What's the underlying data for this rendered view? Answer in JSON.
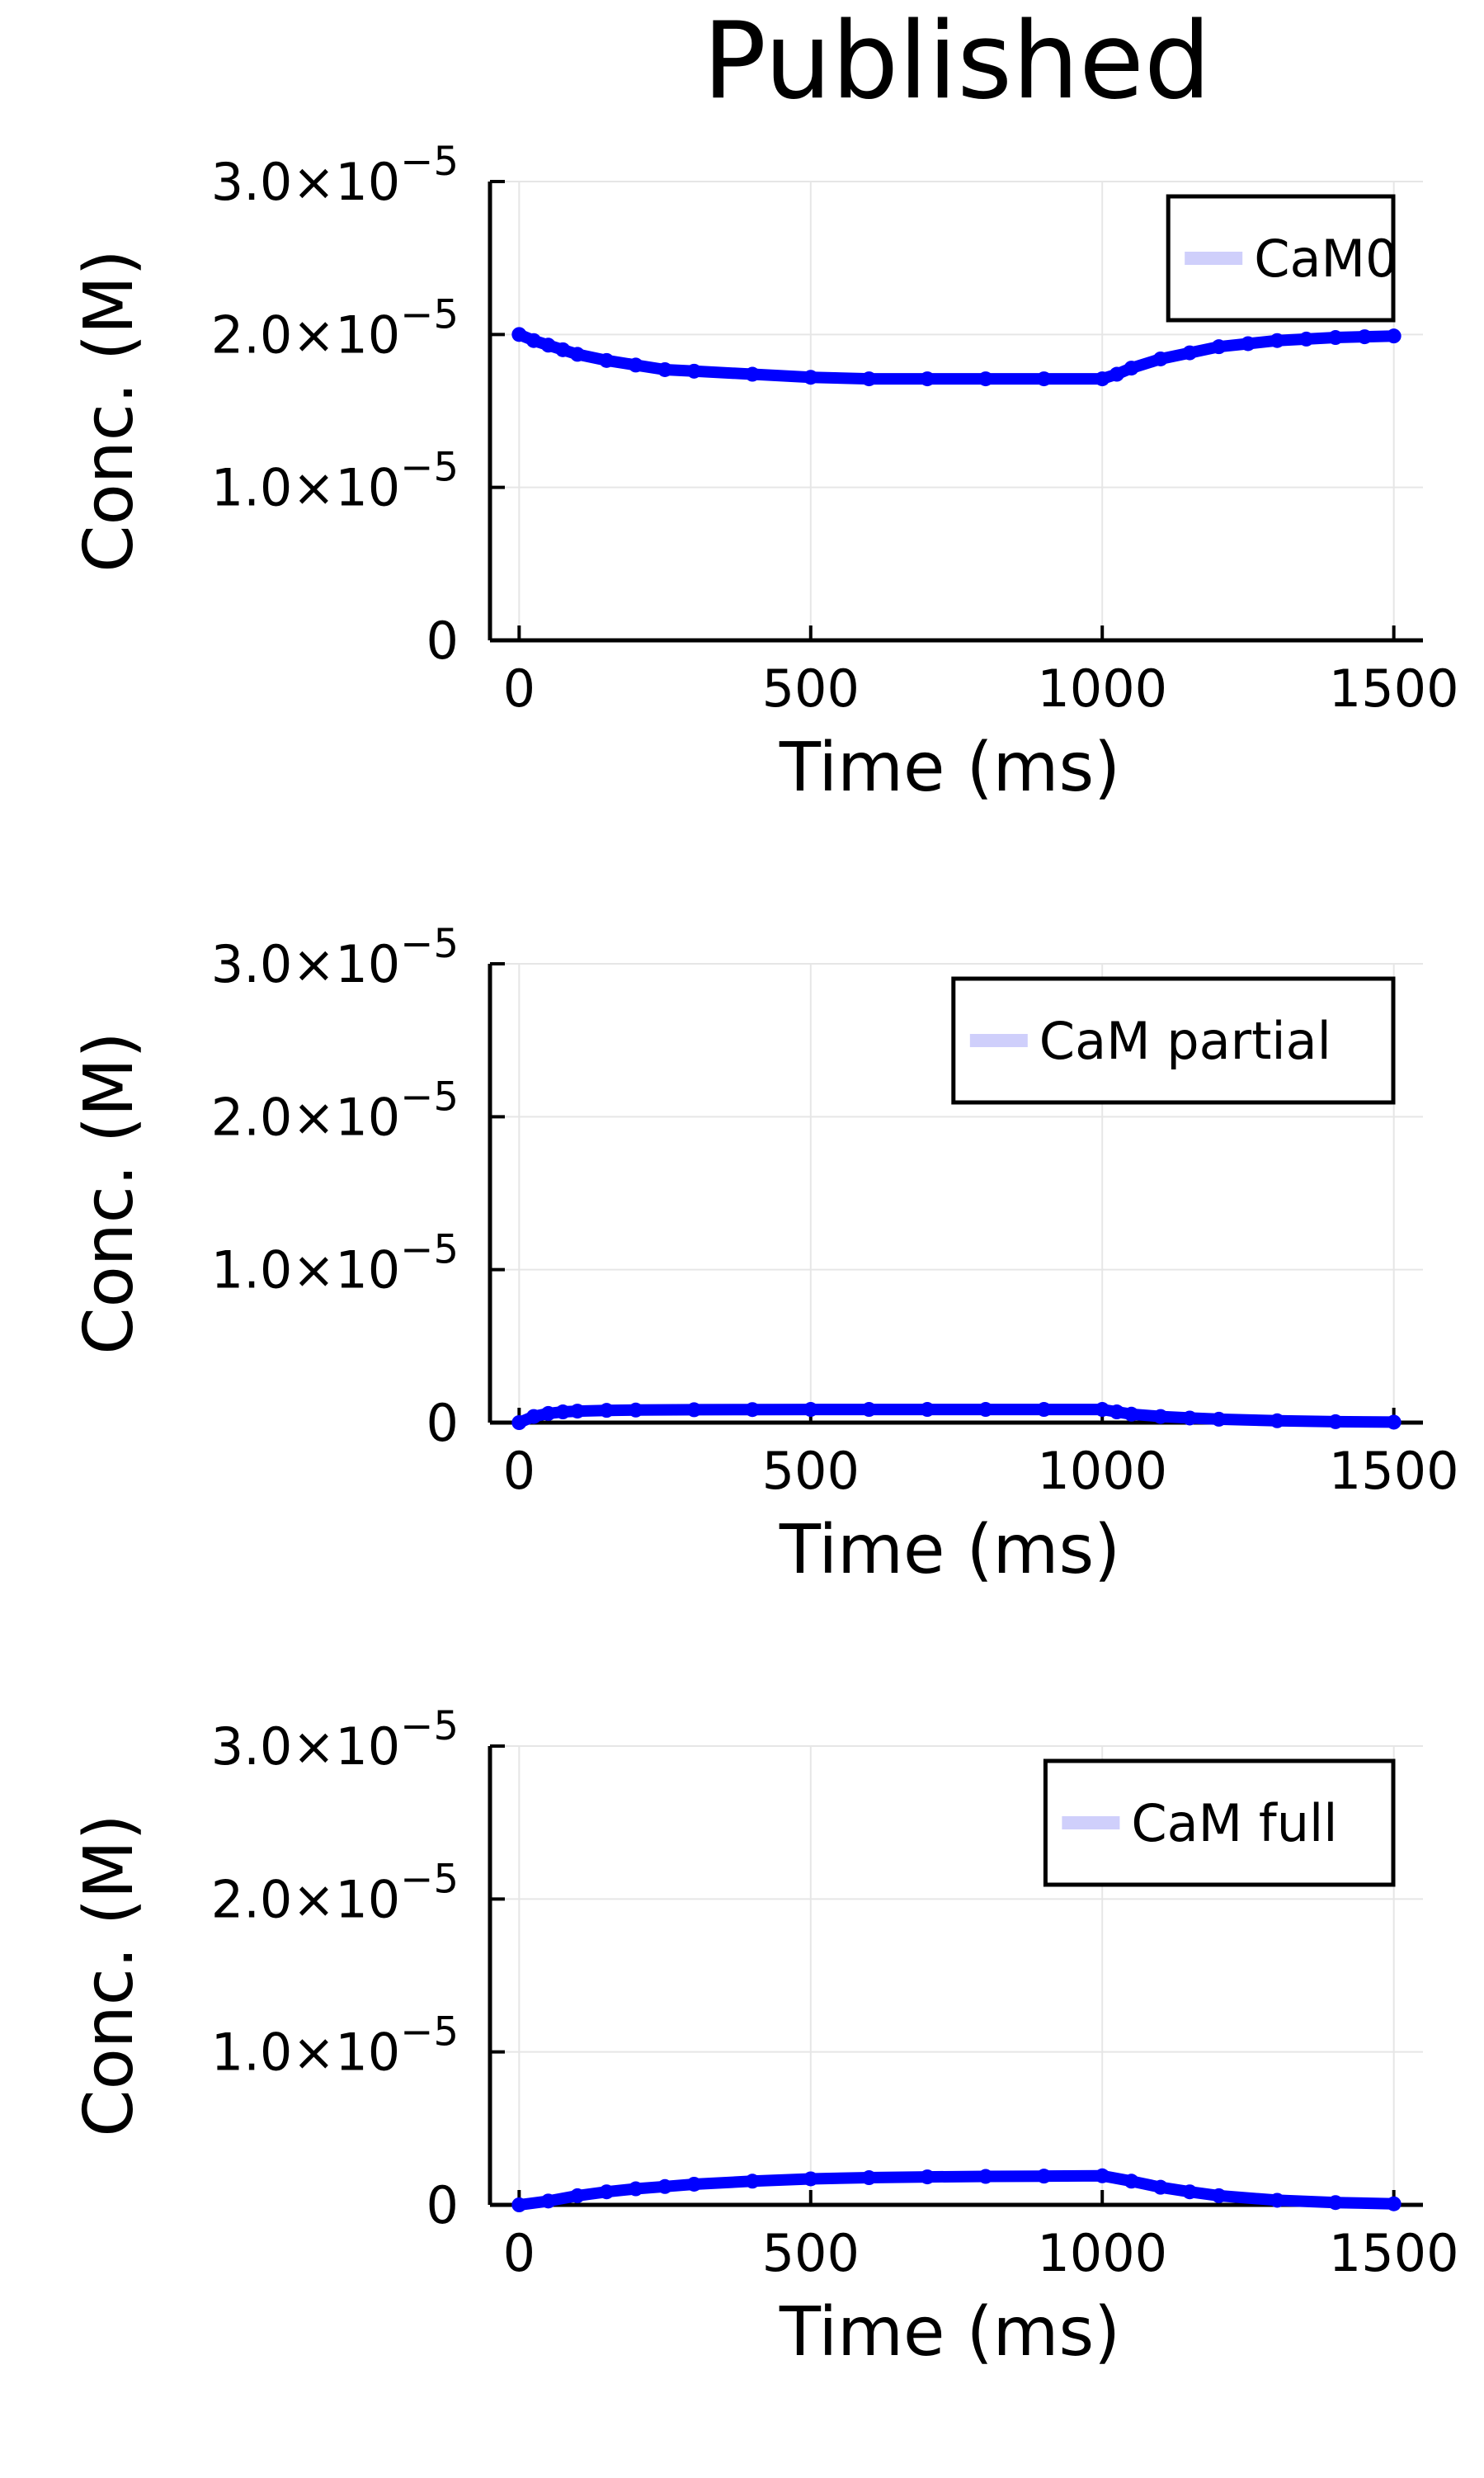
{
  "title": "Published",
  "colors": {
    "series": "#0000ff",
    "legend_swatch": "#cfcffb",
    "grid": "#e6e6e6",
    "axis": "#000000",
    "background": "#ffffff"
  },
  "chart_data": [
    {
      "type": "line",
      "xlabel": "Time (ms)",
      "ylabel": "Conc. (M)",
      "xlim": [
        -50,
        1550
      ],
      "ylim": [
        0,
        3e-05
      ],
      "xticks": [
        0,
        500,
        1000,
        1500
      ],
      "xtick_labels": [
        "0",
        "500",
        "1000",
        "1500"
      ],
      "yticks": [
        0,
        1e-05,
        2e-05,
        3e-05
      ],
      "ytick_labels": [
        {
          "mantissa": "0",
          "exponent": ""
        },
        {
          "mantissa": "1.0×10",
          "exponent": "−5"
        },
        {
          "mantissa": "2.0×10",
          "exponent": "−5"
        },
        {
          "mantissa": "3.0×10",
          "exponent": "−5"
        }
      ],
      "grid": true,
      "legend_position": "top-right",
      "series": [
        {
          "name": "CaM0",
          "x": [
            0,
            25,
            50,
            75,
            100,
            150,
            200,
            250,
            300,
            400,
            500,
            600,
            700,
            800,
            900,
            1000,
            1025,
            1050,
            1100,
            1150,
            1200,
            1250,
            1300,
            1350,
            1400,
            1450,
            1500
          ],
          "y": [
            2e-05,
            1.96e-05,
            1.93e-05,
            1.9e-05,
            1.87e-05,
            1.83e-05,
            1.8e-05,
            1.77e-05,
            1.76e-05,
            1.74e-05,
            1.72e-05,
            1.71e-05,
            1.71e-05,
            1.71e-05,
            1.71e-05,
            1.71e-05,
            1.74e-05,
            1.78e-05,
            1.84e-05,
            1.88e-05,
            1.92e-05,
            1.94e-05,
            1.96e-05,
            1.97e-05,
            1.98e-05,
            1.985e-05,
            1.99e-05
          ]
        }
      ]
    },
    {
      "type": "line",
      "xlabel": "Time (ms)",
      "ylabel": "Conc. (M)",
      "xlim": [
        -50,
        1550
      ],
      "ylim": [
        0,
        3e-05
      ],
      "xticks": [
        0,
        500,
        1000,
        1500
      ],
      "xtick_labels": [
        "0",
        "500",
        "1000",
        "1500"
      ],
      "yticks": [
        0,
        1e-05,
        2e-05,
        3e-05
      ],
      "ytick_labels": [
        {
          "mantissa": "0",
          "exponent": ""
        },
        {
          "mantissa": "1.0×10",
          "exponent": "−5"
        },
        {
          "mantissa": "2.0×10",
          "exponent": "−5"
        },
        {
          "mantissa": "3.0×10",
          "exponent": "−5"
        }
      ],
      "grid": true,
      "legend_position": "top-right",
      "series": [
        {
          "name": "CaM partial",
          "x": [
            0,
            25,
            50,
            75,
            100,
            150,
            200,
            300,
            400,
            500,
            600,
            700,
            800,
            900,
            1000,
            1025,
            1050,
            1100,
            1150,
            1200,
            1300,
            1400,
            1500
          ],
          "y": [
            0,
            4e-07,
            6e-07,
            7e-07,
            7.5e-07,
            8e-07,
            8.2e-07,
            8.4e-07,
            8.5e-07,
            8.6e-07,
            8.6e-07,
            8.6e-07,
            8.6e-07,
            8.6e-07,
            8.6e-07,
            7e-07,
            5.5e-07,
            4e-07,
            3e-07,
            2.2e-07,
            1.2e-07,
            6e-08,
            3e-08
          ]
        }
      ]
    },
    {
      "type": "line",
      "xlabel": "Time (ms)",
      "ylabel": "Conc. (M)",
      "xlim": [
        -50,
        1550
      ],
      "ylim": [
        0,
        3e-05
      ],
      "xticks": [
        0,
        500,
        1000,
        1500
      ],
      "xtick_labels": [
        "0",
        "500",
        "1000",
        "1500"
      ],
      "yticks": [
        0,
        1e-05,
        2e-05,
        3e-05
      ],
      "ytick_labels": [
        {
          "mantissa": "0",
          "exponent": ""
        },
        {
          "mantissa": "1.0×10",
          "exponent": "−5"
        },
        {
          "mantissa": "2.0×10",
          "exponent": "−5"
        },
        {
          "mantissa": "3.0×10",
          "exponent": "−5"
        }
      ],
      "grid": true,
      "legend_position": "top-right",
      "series": [
        {
          "name": "CaM full",
          "x": [
            0,
            50,
            100,
            150,
            200,
            250,
            300,
            400,
            500,
            600,
            700,
            800,
            900,
            1000,
            1050,
            1100,
            1150,
            1200,
            1300,
            1400,
            1500
          ],
          "y": [
            0,
            2.5e-07,
            6e-07,
            8.5e-07,
            1.05e-06,
            1.2e-06,
            1.35e-06,
            1.55e-06,
            1.7e-06,
            1.78e-06,
            1.83e-06,
            1.86e-06,
            1.88e-06,
            1.9e-06,
            1.55e-06,
            1.15e-06,
            8.5e-07,
            6e-07,
            3e-07,
            1.5e-07,
            7e-08
          ]
        }
      ]
    }
  ]
}
